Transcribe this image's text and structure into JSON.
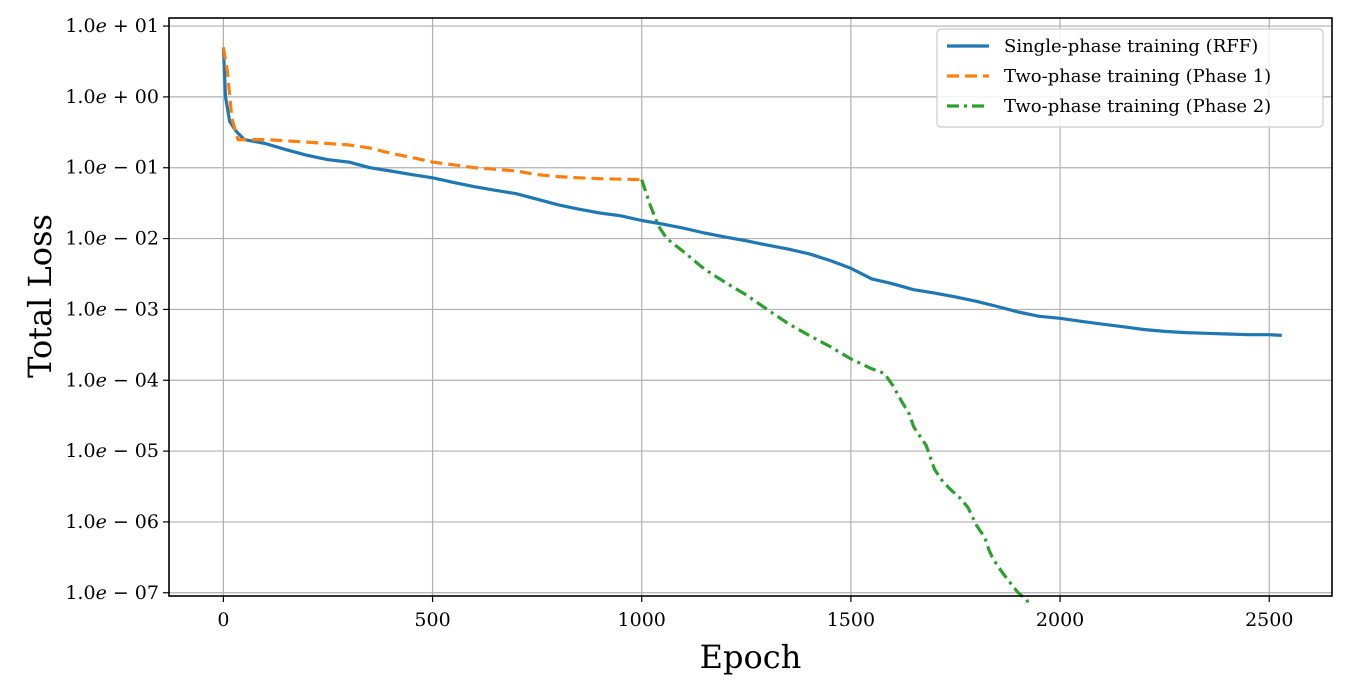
{
  "chart_data": {
    "type": "line",
    "xlabel": "Epoch",
    "ylabel": "Total Loss",
    "yscale": "log",
    "xlim": [
      -130,
      2650
    ],
    "ylim": [
      9e-08,
      13
    ],
    "grid": true,
    "legend_position": "top-right",
    "x_ticks": [
      0,
      500,
      1000,
      1500,
      2000,
      2500
    ],
    "y_ticks": [
      {
        "value": 10,
        "mantissa": "1.0",
        "exp": "+01"
      },
      {
        "value": 1,
        "mantissa": "1.0",
        "exp": "+00"
      },
      {
        "value": 0.1,
        "mantissa": "1.0",
        "exp": "−01"
      },
      {
        "value": 0.01,
        "mantissa": "1.0",
        "exp": "−02"
      },
      {
        "value": 0.001,
        "mantissa": "1.0",
        "exp": "−03"
      },
      {
        "value": 0.0001,
        "mantissa": "1.0",
        "exp": "−04"
      },
      {
        "value": 1e-05,
        "mantissa": "1.0",
        "exp": "−05"
      },
      {
        "value": 1e-06,
        "mantissa": "1.0",
        "exp": "−06"
      },
      {
        "value": 1e-07,
        "mantissa": "1.0",
        "exp": "−07"
      }
    ],
    "series": [
      {
        "name": "Single-phase training (RFF)",
        "color": "#1f77b4",
        "dash": "solid",
        "x": [
          0,
          5,
          15,
          30,
          50,
          100,
          150,
          200,
          250,
          300,
          350,
          400,
          450,
          500,
          550,
          600,
          650,
          700,
          750,
          800,
          850,
          900,
          950,
          1000,
          1050,
          1100,
          1150,
          1200,
          1250,
          1300,
          1350,
          1400,
          1450,
          1500,
          1550,
          1600,
          1650,
          1700,
          1750,
          1800,
          1850,
          1900,
          1950,
          2000,
          2050,
          2100,
          2150,
          2200,
          2250,
          2300,
          2350,
          2400,
          2450,
          2500,
          2530
        ],
        "y": [
          5.0,
          1.0,
          0.45,
          0.33,
          0.25,
          0.22,
          0.18,
          0.15,
          0.13,
          0.12,
          0.1,
          0.09,
          0.08,
          0.072,
          0.062,
          0.054,
          0.048,
          0.043,
          0.036,
          0.03,
          0.026,
          0.023,
          0.021,
          0.018,
          0.016,
          0.014,
          0.012,
          0.0105,
          0.0093,
          0.0081,
          0.0071,
          0.0061,
          0.0049,
          0.0038,
          0.0027,
          0.0023,
          0.0019,
          0.0017,
          0.0015,
          0.0013,
          0.0011,
          0.00092,
          0.0008,
          0.00075,
          0.00068,
          0.00062,
          0.00057,
          0.00052,
          0.00049,
          0.00047,
          0.00046,
          0.00045,
          0.00044,
          0.00044,
          0.00043
        ]
      },
      {
        "name": "Two-phase training (Phase 1)",
        "color": "#ff7f0e",
        "dash": "dashed",
        "x": [
          0,
          10,
          20,
          35,
          50,
          100,
          150,
          200,
          250,
          300,
          350,
          400,
          450,
          500,
          550,
          600,
          650,
          700,
          750,
          800,
          850,
          900,
          950,
          1000
        ],
        "y": [
          5.0,
          2.2,
          0.5,
          0.25,
          0.25,
          0.25,
          0.24,
          0.23,
          0.22,
          0.21,
          0.19,
          0.16,
          0.14,
          0.12,
          0.11,
          0.1,
          0.095,
          0.09,
          0.08,
          0.075,
          0.072,
          0.07,
          0.069,
          0.068
        ]
      },
      {
        "name": "Two-phase training (Phase 2)",
        "color": "#2ca02c",
        "dash": "dashdot",
        "x": [
          1000,
          1020,
          1040,
          1060,
          1100,
          1150,
          1200,
          1250,
          1300,
          1350,
          1400,
          1450,
          1500,
          1550,
          1580,
          1600,
          1620,
          1640,
          1650,
          1660,
          1680,
          1700,
          1720,
          1740,
          1760,
          1780,
          1800,
          1820,
          1830,
          1840,
          1860,
          1880,
          1900,
          1920,
          1925
        ],
        "y": [
          0.068,
          0.03,
          0.015,
          0.01,
          0.0065,
          0.0037,
          0.0024,
          0.0016,
          0.001,
          0.00063,
          0.00043,
          0.0003,
          0.0002,
          0.000145,
          0.000125,
          8.5e-05,
          5.2e-05,
          3.3e-05,
          2.2e-05,
          1.8e-05,
          1.2e-05,
          5.5e-06,
          3.7e-06,
          2.8e-06,
          2.2e-06,
          1.6e-06,
          9e-07,
          6e-07,
          4e-07,
          3e-07,
          2e-07,
          1.4e-07,
          1e-07,
          8e-08,
          7e-08
        ]
      }
    ]
  }
}
